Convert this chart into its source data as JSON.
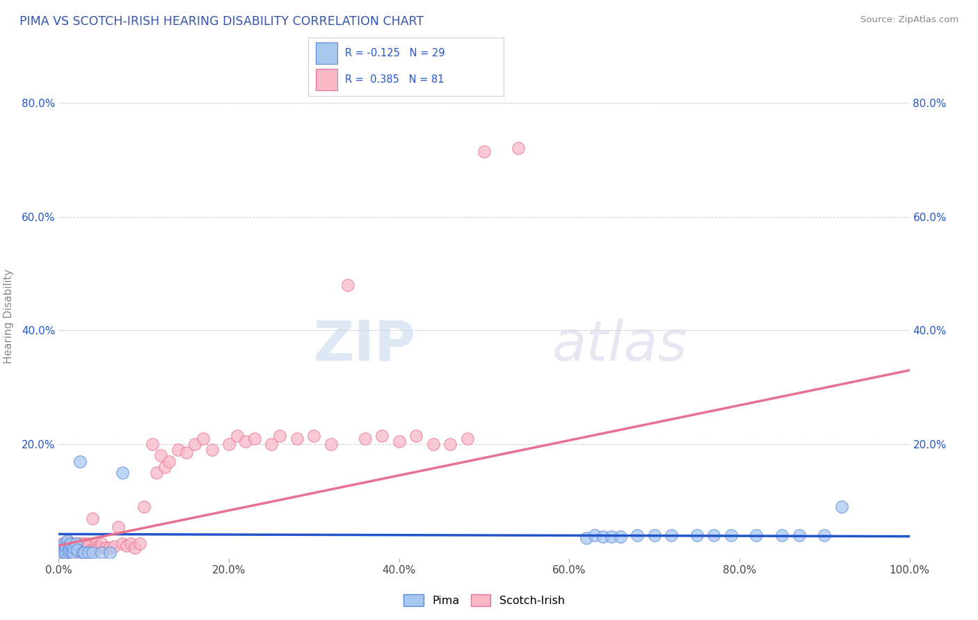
{
  "title": "PIMA VS SCOTCH-IRISH HEARING DISABILITY CORRELATION CHART",
  "source_text": "Source: ZipAtlas.com",
  "ylabel": "Hearing Disability",
  "xlim": [
    0.0,
    1.0
  ],
  "ylim": [
    0.0,
    0.85
  ],
  "x_ticks": [
    0.0,
    0.2,
    0.4,
    0.6,
    0.8,
    1.0
  ],
  "x_tick_labels": [
    "0.0%",
    "20.0%",
    "40.0%",
    "60.0%",
    "80.0%",
    "100.0%"
  ],
  "y_ticks": [
    0.0,
    0.2,
    0.4,
    0.6,
    0.8
  ],
  "y_tick_labels": [
    "",
    "20.0%",
    "40.0%",
    "60.0%",
    "80.0%"
  ],
  "pima_color": "#A8C8F0",
  "scotch_color": "#F8B8C8",
  "pima_edge_color": "#5588DD",
  "scotch_edge_color": "#E87090",
  "pima_line_color": "#2255CC",
  "scotch_line_color": "#E87090",
  "legend_R_color": "#2255CC",
  "watermark_color": "#D8E8F8",
  "background_color": "#FFFFFF",
  "grid_color": "#CCCCCC",
  "title_color": "#3355AA",
  "source_color": "#888888",
  "ylabel_color": "#888888",
  "pima_x": [
    0.002,
    0.004,
    0.005,
    0.006,
    0.007,
    0.008,
    0.009,
    0.01,
    0.011,
    0.012,
    0.013,
    0.014,
    0.015,
    0.016,
    0.017,
    0.018,
    0.02,
    0.022,
    0.025,
    0.028,
    0.03,
    0.035,
    0.04,
    0.05,
    0.06,
    0.075,
    0.62,
    0.63,
    0.64,
    0.65,
    0.66,
    0.68,
    0.7,
    0.72,
    0.75,
    0.77,
    0.79,
    0.82,
    0.85,
    0.87,
    0.9,
    0.92
  ],
  "pima_y": [
    0.015,
    0.018,
    0.01,
    0.025,
    0.015,
    0.01,
    0.02,
    0.03,
    0.012,
    0.022,
    0.015,
    0.025,
    0.018,
    0.012,
    0.008,
    0.018,
    0.025,
    0.015,
    0.17,
    0.01,
    0.01,
    0.01,
    0.01,
    0.01,
    0.01,
    0.15,
    0.035,
    0.04,
    0.038,
    0.038,
    0.038,
    0.04,
    0.04,
    0.04,
    0.04,
    0.04,
    0.04,
    0.04,
    0.04,
    0.04,
    0.04,
    0.09
  ],
  "scotch_x": [
    0.002,
    0.003,
    0.004,
    0.005,
    0.005,
    0.006,
    0.007,
    0.008,
    0.009,
    0.01,
    0.01,
    0.011,
    0.012,
    0.013,
    0.014,
    0.015,
    0.015,
    0.016,
    0.017,
    0.018,
    0.019,
    0.02,
    0.021,
    0.022,
    0.023,
    0.024,
    0.025,
    0.026,
    0.027,
    0.028,
    0.029,
    0.03,
    0.032,
    0.034,
    0.035,
    0.036,
    0.038,
    0.04,
    0.042,
    0.044,
    0.046,
    0.048,
    0.05,
    0.055,
    0.06,
    0.065,
    0.07,
    0.075,
    0.08,
    0.085,
    0.09,
    0.095,
    0.1,
    0.11,
    0.115,
    0.12,
    0.125,
    0.13,
    0.14,
    0.15,
    0.16,
    0.17,
    0.18,
    0.2,
    0.21,
    0.22,
    0.23,
    0.25,
    0.26,
    0.28,
    0.3,
    0.32,
    0.34,
    0.36,
    0.38,
    0.4,
    0.42,
    0.44,
    0.46,
    0.48,
    0.5
  ],
  "scotch_y": [
    0.015,
    0.02,
    0.012,
    0.025,
    0.015,
    0.01,
    0.02,
    0.012,
    0.018,
    0.03,
    0.01,
    0.025,
    0.012,
    0.02,
    0.015,
    0.025,
    0.01,
    0.018,
    0.012,
    0.02,
    0.015,
    0.025,
    0.018,
    0.02,
    0.012,
    0.025,
    0.018,
    0.02,
    0.025,
    0.018,
    0.012,
    0.025,
    0.018,
    0.025,
    0.02,
    0.01,
    0.015,
    0.07,
    0.018,
    0.025,
    0.02,
    0.018,
    0.025,
    0.018,
    0.018,
    0.02,
    0.055,
    0.025,
    0.022,
    0.025,
    0.018,
    0.025,
    0.09,
    0.2,
    0.15,
    0.18,
    0.16,
    0.17,
    0.19,
    0.185,
    0.2,
    0.21,
    0.19,
    0.2,
    0.215,
    0.205,
    0.21,
    0.2,
    0.215,
    0.21,
    0.215,
    0.2,
    0.48,
    0.21,
    0.215,
    0.205,
    0.215,
    0.2,
    0.2,
    0.21,
    0.715
  ],
  "scotch_outlier_x": [
    0.54
  ],
  "scotch_outlier_y": [
    0.72
  ],
  "pima_line_x0": 0.0,
  "pima_line_y0": 0.042,
  "pima_line_x1": 1.0,
  "pima_line_y1": 0.038,
  "scotch_line_x0": 0.0,
  "scotch_line_y0": 0.022,
  "scotch_line_x1": 1.0,
  "scotch_line_y1": 0.33
}
